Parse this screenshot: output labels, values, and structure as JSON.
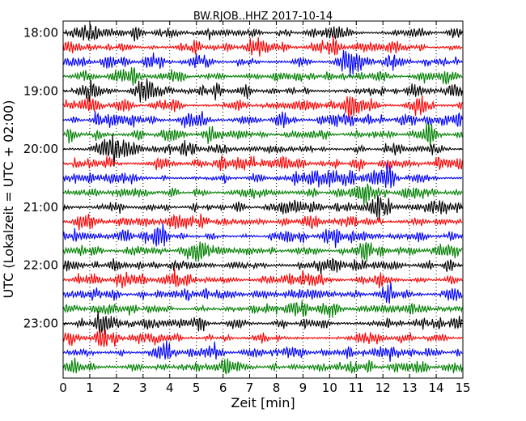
{
  "chart_data": {
    "type": "line",
    "title": "BW.RJOB..HHZ 2017-10-14",
    "xlabel": "Zeit  [min]",
    "ylabel": "UTC (Lokalzeit = UTC + 02:00)",
    "xlim": [
      0,
      15
    ],
    "x_ticks": [
      "0",
      "1",
      "2",
      "3",
      "4",
      "5",
      "6",
      "7",
      "8",
      "9",
      "10",
      "11",
      "12",
      "13",
      "14",
      "15"
    ],
    "y_ticks": [
      "18:00",
      "19:00",
      "20:00",
      "21:00",
      "22:00",
      "23:00"
    ],
    "grid": "vertical dotted lines at each minute",
    "trace_colors": [
      "#000000",
      "#ff0000",
      "#0000ff",
      "#008000"
    ],
    "traces": [
      {
        "start": "18:00",
        "color": "#000000"
      },
      {
        "start": "18:15",
        "color": "#ff0000"
      },
      {
        "start": "18:30",
        "color": "#0000ff"
      },
      {
        "start": "18:45",
        "color": "#008000"
      },
      {
        "start": "19:00",
        "color": "#000000"
      },
      {
        "start": "19:15",
        "color": "#ff0000"
      },
      {
        "start": "19:30",
        "color": "#0000ff"
      },
      {
        "start": "19:45",
        "color": "#008000"
      },
      {
        "start": "20:00",
        "color": "#000000"
      },
      {
        "start": "20:15",
        "color": "#ff0000"
      },
      {
        "start": "20:30",
        "color": "#0000ff"
      },
      {
        "start": "20:45",
        "color": "#008000"
      },
      {
        "start": "21:00",
        "color": "#000000"
      },
      {
        "start": "21:15",
        "color": "#ff0000"
      },
      {
        "start": "21:30",
        "color": "#0000ff"
      },
      {
        "start": "21:45",
        "color": "#008000"
      },
      {
        "start": "22:00",
        "color": "#000000"
      },
      {
        "start": "22:15",
        "color": "#ff0000"
      },
      {
        "start": "22:30",
        "color": "#0000ff"
      },
      {
        "start": "22:45",
        "color": "#008000"
      },
      {
        "start": "23:00",
        "color": "#000000"
      },
      {
        "start": "23:15",
        "color": "#ff0000"
      },
      {
        "start": "23:30",
        "color": "#0000ff"
      },
      {
        "start": "23:45",
        "color": "#008000"
      }
    ]
  }
}
